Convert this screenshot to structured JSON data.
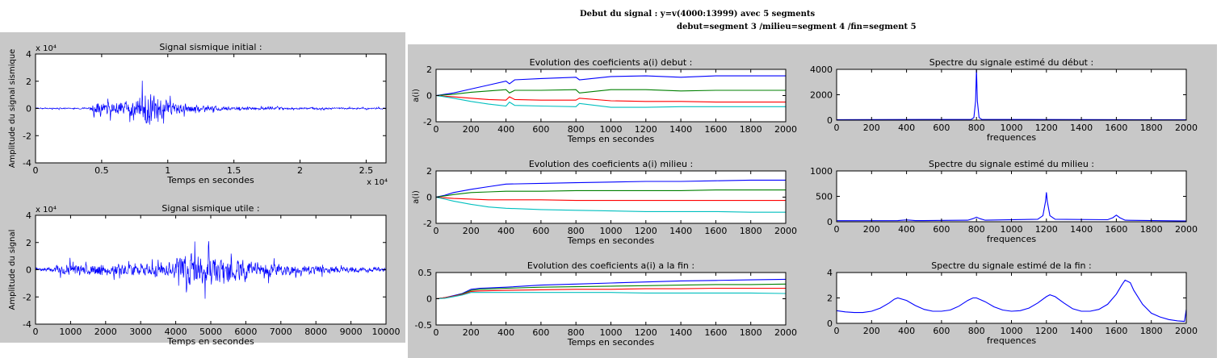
{
  "header": {
    "line1": "Debut du signal : y=v(4000:13999) avec 5 segments",
    "line2": "debut=segment 3 /milieu=segment 4 /fin=segment 5"
  },
  "colors": {
    "figure_bg": "#c8c8c8",
    "axes_bg": "#ffffff",
    "blue": "#0000ff",
    "green": "#008000",
    "red": "#ff0000",
    "cyan": "#00bfbf"
  },
  "chart_data": [
    {
      "id": "p1",
      "type": "line",
      "title": "Signal sismique initial :",
      "xlabel": "Temps en secondes",
      "ylabel": "Amplitude du signal sismique",
      "xlim": [
        0,
        26500
      ],
      "ylim": [
        -40000,
        40000
      ],
      "xticks": [
        0,
        5000,
        10000,
        15000,
        20000,
        25000
      ],
      "xtick_labels": [
        "0",
        "0.5",
        "1",
        "1.5",
        "2",
        "2.5"
      ],
      "yticks": [
        -40000,
        -20000,
        0,
        20000,
        40000
      ],
      "ytick_labels": [
        "-4",
        "-2",
        "0",
        "2",
        "4"
      ],
      "y_exponent": "x 10⁴",
      "x_exponent": "x 10⁴",
      "series": [
        {
          "color": "blue",
          "noise": true,
          "seed": 3,
          "x": [
            0,
            4000,
            4500,
            6000,
            7500,
            8500,
            9000,
            10000,
            12000,
            15000,
            20000,
            26500
          ],
          "envelope": [
            1200,
            1500,
            14000,
            12000,
            18000,
            36000,
            30000,
            15000,
            7000,
            3500,
            2000,
            1500
          ]
        }
      ]
    },
    {
      "id": "p2",
      "type": "line",
      "title": "Signal sismique utile :",
      "xlabel": "Temps en secondes",
      "ylabel": "Amplitude du signal",
      "xlim": [
        0,
        10000
      ],
      "ylim": [
        -40000,
        40000
      ],
      "xticks": [
        0,
        1000,
        2000,
        3000,
        4000,
        5000,
        6000,
        7000,
        8000,
        9000,
        10000
      ],
      "xtick_labels": [
        "0",
        "1000",
        "2000",
        "3000",
        "4000",
        "5000",
        "6000",
        "7000",
        "8000",
        "9000",
        "10000"
      ],
      "yticks": [
        -40000,
        -20000,
        0,
        20000,
        40000
      ],
      "ytick_labels": [
        "-4",
        "-2",
        "0",
        "2",
        "4"
      ],
      "y_exponent": "x 10⁴",
      "series": [
        {
          "color": "blue",
          "noise": true,
          "seed": 7,
          "x": [
            0,
            400,
            1000,
            2000,
            3000,
            3800,
            4500,
            5000,
            6000,
            7000,
            8000,
            9000,
            10000
          ],
          "envelope": [
            2000,
            5000,
            12000,
            13000,
            11000,
            14000,
            36000,
            28000,
            20000,
            13000,
            9000,
            6000,
            4000
          ]
        }
      ]
    },
    {
      "id": "p3",
      "type": "line",
      "title": "Evolution des coeficients a(i) debut :",
      "xlabel": "Temps en secondes",
      "ylabel": "a(i)",
      "xlim": [
        0,
        2000
      ],
      "ylim": [
        -2,
        2
      ],
      "xticks": [
        0,
        200,
        400,
        600,
        800,
        1000,
        1200,
        1400,
        1600,
        1800,
        2000
      ],
      "xtick_labels": [
        "0",
        "200",
        "400",
        "600",
        "800",
        "1000",
        "1200",
        "1400",
        "1600",
        "1800",
        "2000"
      ],
      "yticks": [
        -2,
        0,
        2
      ],
      "ytick_labels": [
        "-2",
        "0",
        "2"
      ],
      "series": [
        {
          "color": "blue",
          "x": [
            0,
            50,
            100,
            200,
            300,
            400,
            420,
            450,
            600,
            800,
            820,
            1000,
            1200,
            1400,
            1600,
            1800,
            2000
          ],
          "y": [
            0,
            0.1,
            0.2,
            0.5,
            0.8,
            1.1,
            0.9,
            1.2,
            1.3,
            1.4,
            1.2,
            1.45,
            1.5,
            1.4,
            1.5,
            1.5,
            1.5
          ]
        },
        {
          "color": "green",
          "x": [
            0,
            50,
            100,
            200,
            300,
            400,
            420,
            450,
            600,
            800,
            820,
            1000,
            1200,
            1400,
            1600,
            1800,
            2000
          ],
          "y": [
            0,
            0.05,
            0.1,
            0.25,
            0.35,
            0.45,
            0.2,
            0.4,
            0.4,
            0.45,
            0.2,
            0.45,
            0.45,
            0.35,
            0.4,
            0.4,
            0.4
          ]
        },
        {
          "color": "red",
          "x": [
            0,
            50,
            100,
            200,
            300,
            400,
            420,
            450,
            600,
            800,
            820,
            1000,
            1200,
            1400,
            1600,
            1800,
            2000
          ],
          "y": [
            0,
            -0.05,
            -0.1,
            -0.2,
            -0.3,
            -0.35,
            -0.1,
            -0.3,
            -0.35,
            -0.35,
            -0.2,
            -0.4,
            -0.45,
            -0.45,
            -0.5,
            -0.5,
            -0.5
          ]
        },
        {
          "color": "cyan",
          "x": [
            0,
            50,
            100,
            200,
            300,
            400,
            420,
            450,
            600,
            800,
            820,
            1000,
            1200,
            1400,
            1600,
            1800,
            2000
          ],
          "y": [
            0,
            -0.1,
            -0.2,
            -0.45,
            -0.65,
            -0.8,
            -0.5,
            -0.75,
            -0.8,
            -0.85,
            -0.6,
            -0.9,
            -0.9,
            -0.85,
            -0.85,
            -0.85,
            -0.85
          ]
        }
      ]
    },
    {
      "id": "p4",
      "type": "line",
      "title": "Spectre du signale estimé du début :",
      "xlabel": "frequences",
      "ylabel": "",
      "xlim": [
        0,
        2000
      ],
      "ylim": [
        0,
        4000
      ],
      "xticks": [
        0,
        200,
        400,
        600,
        800,
        1000,
        1200,
        1400,
        1600,
        1800,
        2000
      ],
      "xtick_labels": [
        "0",
        "200",
        "400",
        "600",
        "800",
        "1000",
        "1200",
        "1400",
        "1600",
        "1800",
        "2000"
      ],
      "yticks": [
        0,
        2000,
        4000
      ],
      "ytick_labels": [
        "0",
        "2000",
        "4000"
      ],
      "series": [
        {
          "color": "blue",
          "x": [
            0,
            770,
            785,
            795,
            800,
            805,
            815,
            830,
            2000
          ],
          "y": [
            40,
            60,
            200,
            1500,
            4000,
            1500,
            200,
            60,
            30
          ]
        }
      ]
    },
    {
      "id": "p5",
      "type": "line",
      "title": "Evolution des coeficients a(i) milieu  :",
      "xlabel": "Temps en secondes",
      "ylabel": "a(i)",
      "xlim": [
        0,
        2000
      ],
      "ylim": [
        -2,
        2
      ],
      "xticks": [
        0,
        200,
        400,
        600,
        800,
        1000,
        1200,
        1400,
        1600,
        1800,
        2000
      ],
      "xtick_labels": [
        "0",
        "200",
        "400",
        "600",
        "800",
        "1000",
        "1200",
        "1400",
        "1600",
        "1800",
        "2000"
      ],
      "yticks": [
        -2,
        0,
        2
      ],
      "ytick_labels": [
        "-2",
        "0",
        "2"
      ],
      "series": [
        {
          "color": "blue",
          "x": [
            0,
            50,
            100,
            200,
            300,
            400,
            600,
            800,
            1000,
            1200,
            1400,
            1600,
            1800,
            2000
          ],
          "y": [
            0,
            0.15,
            0.35,
            0.6,
            0.8,
            1.0,
            1.05,
            1.1,
            1.15,
            1.2,
            1.2,
            1.25,
            1.3,
            1.3
          ]
        },
        {
          "color": "green",
          "x": [
            0,
            50,
            100,
            200,
            300,
            400,
            600,
            800,
            1000,
            1200,
            1400,
            1600,
            1800,
            2000
          ],
          "y": [
            0,
            0.1,
            0.2,
            0.35,
            0.4,
            0.45,
            0.45,
            0.5,
            0.5,
            0.5,
            0.5,
            0.55,
            0.55,
            0.55
          ]
        },
        {
          "color": "red",
          "x": [
            0,
            50,
            100,
            200,
            300,
            400,
            600,
            800,
            1000,
            1200,
            1400,
            1600,
            1800,
            2000
          ],
          "y": [
            0,
            -0.05,
            -0.1,
            -0.15,
            -0.2,
            -0.2,
            -0.2,
            -0.25,
            -0.25,
            -0.25,
            -0.25,
            -0.25,
            -0.25,
            -0.25
          ]
        },
        {
          "color": "cyan",
          "x": [
            0,
            50,
            100,
            200,
            300,
            400,
            600,
            800,
            1000,
            1200,
            1400,
            1600,
            1800,
            2000
          ],
          "y": [
            0,
            -0.15,
            -0.3,
            -0.55,
            -0.75,
            -0.85,
            -0.95,
            -1.0,
            -1.05,
            -1.1,
            -1.1,
            -1.1,
            -1.15,
            -1.15
          ]
        }
      ]
    },
    {
      "id": "p6",
      "type": "line",
      "title": "Spectre du signale estimé du milieu :",
      "xlabel": "frequences",
      "ylabel": "",
      "xlim": [
        0,
        2000
      ],
      "ylim": [
        0,
        1000
      ],
      "xticks": [
        0,
        200,
        400,
        600,
        800,
        1000,
        1200,
        1400,
        1600,
        1800,
        2000
      ],
      "xtick_labels": [
        "0",
        "200",
        "400",
        "600",
        "800",
        "1000",
        "1200",
        "1400",
        "1600",
        "1800",
        "2000"
      ],
      "yticks": [
        0,
        500,
        1000
      ],
      "ytick_labels": [
        "0",
        "500",
        "1000"
      ],
      "series": [
        {
          "color": "blue",
          "x": [
            0,
            350,
            380,
            400,
            420,
            450,
            750,
            780,
            800,
            820,
            850,
            1150,
            1180,
            1195,
            1200,
            1205,
            1220,
            1250,
            1550,
            1580,
            1600,
            1620,
            1650,
            2000
          ],
          "y": [
            20,
            22,
            30,
            35,
            30,
            22,
            30,
            60,
            90,
            60,
            30,
            50,
            120,
            400,
            580,
            400,
            120,
            50,
            40,
            80,
            130,
            80,
            30,
            15
          ]
        }
      ]
    },
    {
      "id": "p7",
      "type": "line",
      "title": "Evolution des coeficients a(i) a la fin  :",
      "xlabel": "Temps en secondes",
      "ylabel": "",
      "xlim": [
        0,
        2000
      ],
      "ylim": [
        -0.5,
        0.5
      ],
      "xticks": [
        0,
        200,
        400,
        600,
        800,
        1000,
        1200,
        1400,
        1600,
        1800,
        2000
      ],
      "xtick_labels": [
        "0",
        "200",
        "400",
        "600",
        "800",
        "1000",
        "1200",
        "1400",
        "1600",
        "1800",
        "2000"
      ],
      "yticks": [
        -0.5,
        0,
        0.5
      ],
      "ytick_labels": [
        "-0.5",
        "0",
        "0.5"
      ],
      "series": [
        {
          "color": "blue",
          "x": [
            0,
            50,
            100,
            150,
            200,
            250,
            400,
            600,
            800,
            1000,
            1200,
            1400,
            1600,
            1800,
            2000
          ],
          "y": [
            0,
            0.02,
            0.06,
            0.1,
            0.18,
            0.2,
            0.22,
            0.26,
            0.28,
            0.3,
            0.32,
            0.34,
            0.35,
            0.36,
            0.37
          ]
        },
        {
          "color": "green",
          "x": [
            0,
            50,
            100,
            150,
            200,
            250,
            400,
            600,
            800,
            1000,
            1200,
            1400,
            1600,
            1800,
            2000
          ],
          "y": [
            0,
            0.02,
            0.05,
            0.09,
            0.16,
            0.18,
            0.2,
            0.22,
            0.23,
            0.24,
            0.25,
            0.26,
            0.27,
            0.27,
            0.28
          ]
        },
        {
          "color": "red",
          "x": [
            0,
            50,
            100,
            150,
            200,
            250,
            400,
            600,
            800,
            1000,
            1200,
            1400,
            1600,
            1800,
            2000
          ],
          "y": [
            0,
            0.02,
            0.05,
            0.08,
            0.14,
            0.15,
            0.16,
            0.17,
            0.18,
            0.18,
            0.19,
            0.19,
            0.2,
            0.2,
            0.2
          ]
        },
        {
          "color": "cyan",
          "x": [
            0,
            50,
            100,
            150,
            200,
            250,
            400,
            600,
            800,
            1000,
            1200,
            1400,
            1600,
            1800,
            2000
          ],
          "y": [
            0,
            0.01,
            0.04,
            0.07,
            0.12,
            0.12,
            0.12,
            0.12,
            0.12,
            0.12,
            0.11,
            0.11,
            0.11,
            0.11,
            0.1
          ]
        }
      ]
    },
    {
      "id": "p8",
      "type": "line",
      "title": "Spectre du signale estimé de la fin :",
      "xlabel": "frequences",
      "ylabel": "",
      "xlim": [
        0,
        2000
      ],
      "ylim": [
        0,
        4
      ],
      "xticks": [
        0,
        200,
        400,
        600,
        800,
        1000,
        1200,
        1400,
        1600,
        1800,
        2000
      ],
      "xtick_labels": [
        "0",
        "200",
        "400",
        "600",
        "800",
        "1000",
        "1200",
        "1400",
        "1600",
        "1800",
        "2000"
      ],
      "yticks": [
        0,
        2,
        4
      ],
      "ytick_labels": [
        "0",
        "2",
        "4"
      ],
      "series": [
        {
          "color": "blue",
          "x": [
            0,
            50,
            100,
            150,
            200,
            250,
            300,
            330,
            350,
            400,
            450,
            500,
            550,
            600,
            650,
            700,
            750,
            780,
            800,
            850,
            900,
            950,
            1000,
            1050,
            1100,
            1150,
            1200,
            1220,
            1250,
            1300,
            1350,
            1400,
            1450,
            1500,
            1550,
            1600,
            1630,
            1650,
            1680,
            1700,
            1750,
            1800,
            1850,
            1900,
            1950,
            1990,
            2000
          ],
          "y": [
            1.0,
            0.9,
            0.85,
            0.85,
            0.95,
            1.2,
            1.6,
            1.9,
            2.0,
            1.8,
            1.4,
            1.1,
            0.95,
            0.95,
            1.05,
            1.35,
            1.8,
            2.0,
            2.0,
            1.7,
            1.3,
            1.05,
            0.95,
            1.0,
            1.2,
            1.6,
            2.1,
            2.25,
            2.1,
            1.6,
            1.15,
            0.95,
            0.95,
            1.1,
            1.5,
            2.3,
            3.0,
            3.4,
            3.2,
            2.6,
            1.5,
            0.8,
            0.5,
            0.3,
            0.2,
            0.15,
            1.1
          ]
        }
      ]
    }
  ]
}
